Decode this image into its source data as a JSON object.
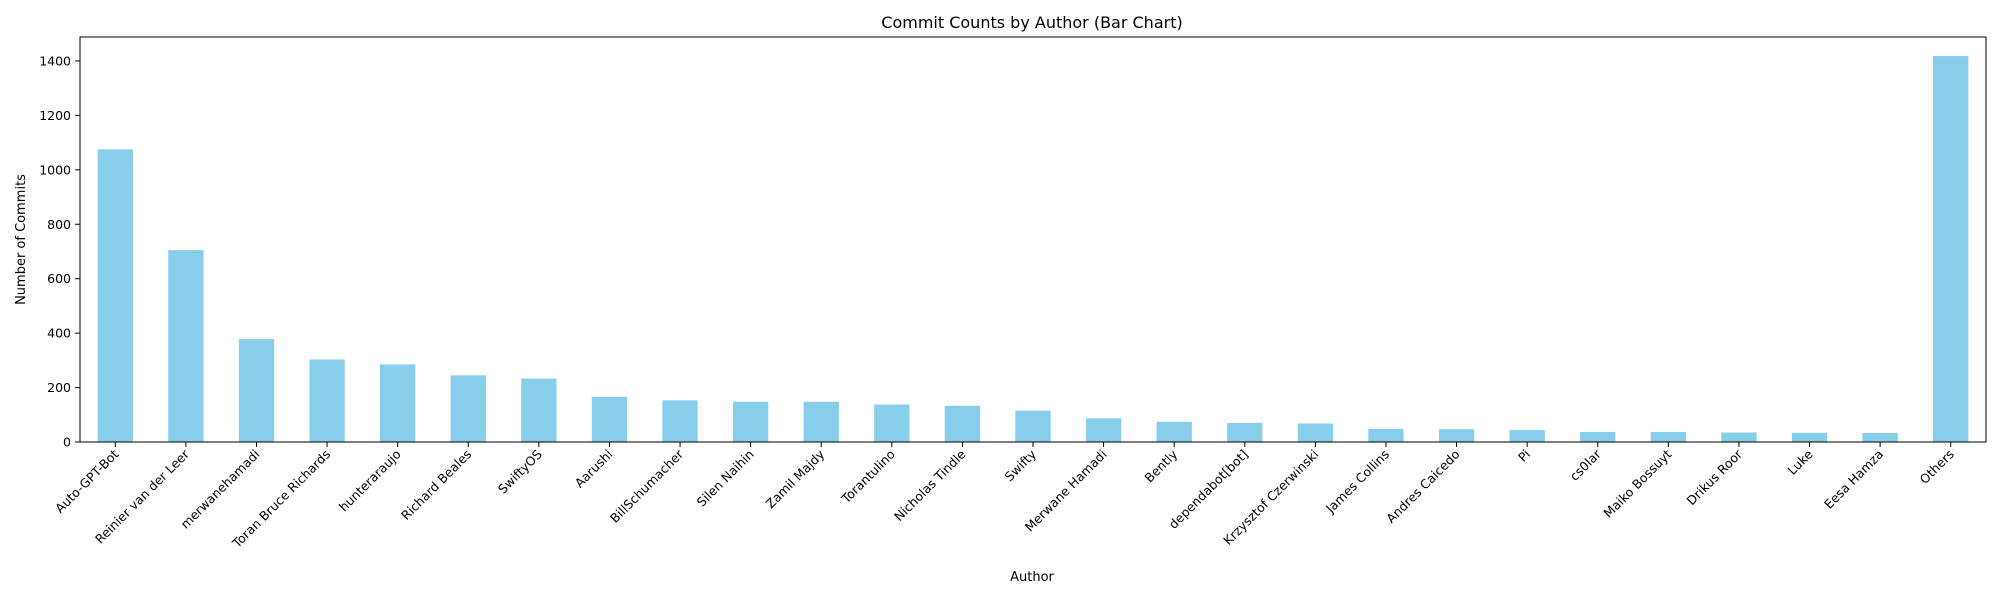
{
  "chart_data": {
    "type": "bar",
    "title": "Commit Counts by Author (Bar Chart)",
    "xlabel": "Author",
    "ylabel": "Number of Commits",
    "categories": [
      "Auto-GPT-Bot",
      "Reinier van der Leer",
      "merwanehamadi",
      "Toran Bruce Richards",
      "hunteraraujo",
      "Richard Beales",
      "SwiftyOS",
      "Aarushi",
      "BillSchumacher",
      "Silen Naihin",
      "Zamil Majdy",
      "Torantulino",
      "Nicholas Tindle",
      "Swifty",
      "Merwane Hamadi",
      "Bently",
      "dependabot[bot]",
      "Krzysztof Czerwinski",
      "James Collins",
      "Andres Caicedo",
      "Pi",
      "cs0lar",
      "Maiko Bossuyt",
      "Drikus Roor",
      "Luke",
      "Eesa Hamza",
      "Others"
    ],
    "values": [
      1075,
      705,
      378,
      303,
      285,
      245,
      233,
      166,
      153,
      148,
      148,
      138,
      133,
      115,
      87,
      74,
      70,
      68,
      48,
      47,
      44,
      37,
      37,
      35,
      34,
      33,
      1418
    ],
    "ylim": [
      0,
      1488
    ],
    "yticks": [
      0,
      200,
      400,
      600,
      800,
      1000,
      1200,
      1400
    ],
    "bar_color": "#87ceeb",
    "grid": false,
    "legend": "none"
  }
}
